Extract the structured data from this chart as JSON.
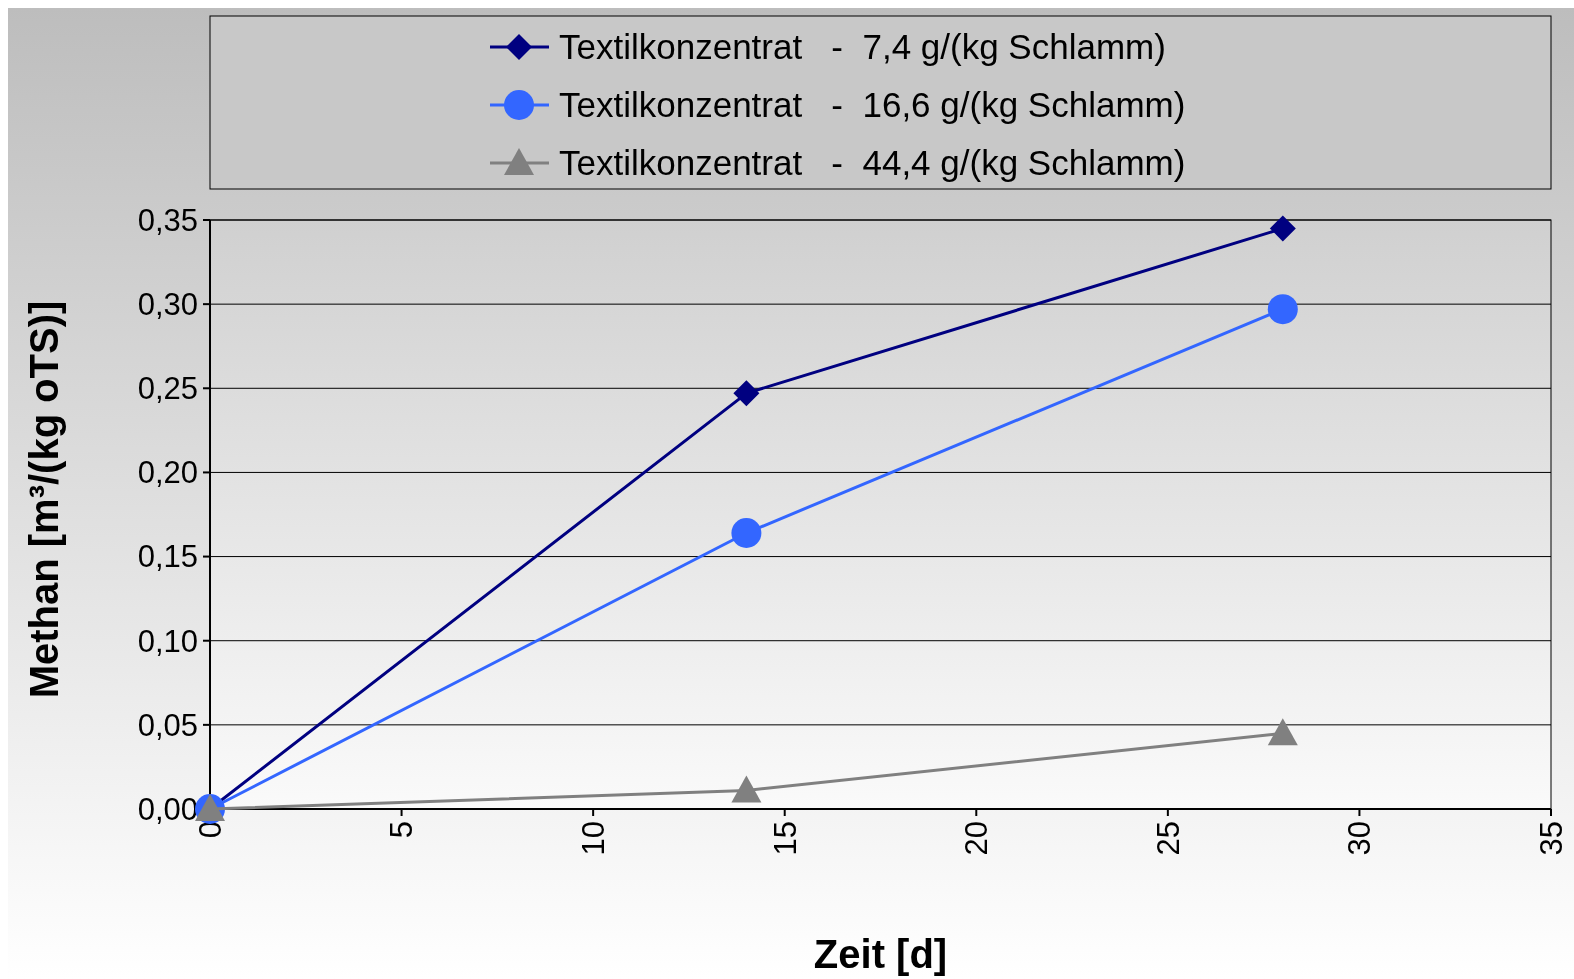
{
  "chart_data": {
    "type": "line",
    "xlabel": "Zeit [d]",
    "ylabel": "Methan [m³/(kg oTS)]",
    "x": [
      0,
      14,
      28
    ],
    "series": [
      {
        "name": "Textilkonzentrat   -  7,4 g/(kg Schlamm)",
        "color": "#000080",
        "marker": "diamond",
        "values": [
          0,
          0.247,
          0.345
        ]
      },
      {
        "name": "Textilkonzentrat   -  16,6 g/(kg Schlamm)",
        "color": "#3366ff",
        "marker": "circle",
        "values": [
          0,
          0.164,
          0.297
        ]
      },
      {
        "name": "Textilkonzentrat   -  44,4 g/(kg Schlamm)",
        "color": "#808080",
        "marker": "triangle",
        "values": [
          0,
          0.011,
          0.045
        ]
      }
    ],
    "xlim": [
      0,
      35
    ],
    "xticks": [
      0,
      5,
      10,
      15,
      20,
      25,
      30,
      35
    ],
    "ylim": [
      0,
      0.35
    ],
    "yticks": [
      {
        "value": 0,
        "label": "0,00"
      },
      {
        "value": 0.05,
        "label": "0,05"
      },
      {
        "value": 0.1,
        "label": "0,10"
      },
      {
        "value": 0.15,
        "label": "0,15"
      },
      {
        "value": 0.2,
        "label": "0,20"
      },
      {
        "value": 0.25,
        "label": "0,25"
      },
      {
        "value": 0.3,
        "label": "0,30"
      },
      {
        "value": 0.35,
        "label": "0,35"
      }
    ],
    "grid": "y",
    "legend": "top",
    "line_style": "solid"
  }
}
